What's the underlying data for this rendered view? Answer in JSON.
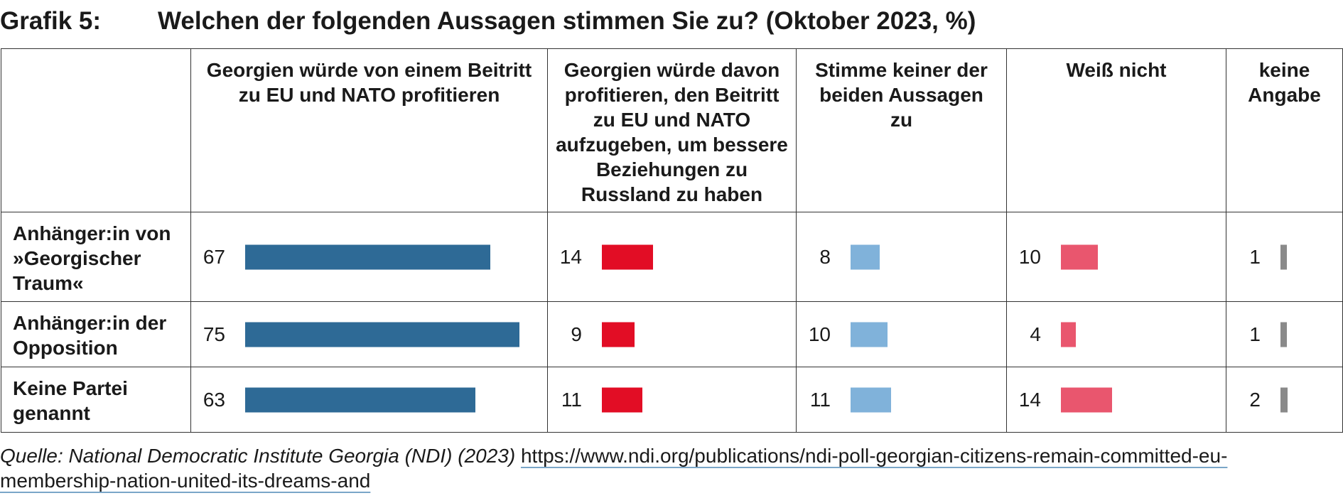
{
  "title": {
    "label": "Grafik 5:",
    "text": "Welchen der folgenden Aussagen stimmen Sie zu? (Oktober 2023, %)"
  },
  "chart_data": {
    "type": "bar",
    "title": "Welchen der folgenden Aussagen stimmen Sie zu? (Oktober 2023, %)",
    "columns": [
      "Georgien würde von einem Beitritt zu EU und NATO profitieren",
      "Georgien würde davon profitieren, den Beitritt zu EU und NATO aufzugeben, um bessere Beziehungen zu Russland zu haben",
      "Stimme keiner der beiden Aussagen zu",
      "Weiß nicht",
      "keine Angabe"
    ],
    "categories": [
      "Anhänger:in von »Georgischer Traum«",
      "Anhänger:in der Opposition",
      "Keine Partei genannt"
    ],
    "series": [
      {
        "name": "Georgien würde von einem Beitritt zu EU und NATO profitieren",
        "color": "#2e6a96",
        "values": [
          67,
          75,
          63
        ]
      },
      {
        "name": "Georgien würde davon profitieren, den Beitritt zu EU und NATO aufzugeben, um bessere Beziehungen zu Russland zu haben",
        "color": "#e20d25",
        "values": [
          14,
          9,
          11
        ]
      },
      {
        "name": "Stimme keiner der beiden Aussagen zu",
        "color": "#80b2da",
        "values": [
          8,
          10,
          11
        ]
      },
      {
        "name": "Weiß nicht",
        "color": "#e9566e",
        "values": [
          10,
          4,
          14
        ]
      },
      {
        "name": "keine Angabe",
        "color": "#8a8a8a",
        "values": [
          1,
          1,
          2
        ]
      }
    ],
    "unit": "%"
  },
  "source": {
    "text": "Quelle: National Democratic Institute Georgia (NDI) (2023)",
    "url": "https://www.ndi.org/publications/ndi-poll-georgian-citizens-remain-committed-eu-membership-nation-united-its-dreams-and"
  }
}
